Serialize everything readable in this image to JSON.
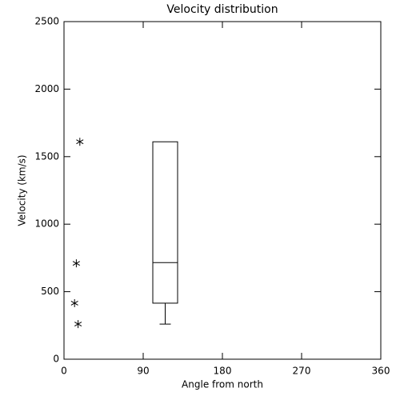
{
  "chart_data": [
    {
      "type": "scatter",
      "title": "Velocity distribution",
      "x_label": "Angle from north",
      "y_label": "Velocity (km/s)",
      "x": [
        18,
        14,
        12,
        16
      ],
      "values": [
        1610,
        710,
        415,
        260
      ],
      "xlim": [
        0,
        360
      ],
      "ylim": [
        0,
        2500
      ],
      "xticks": [
        0,
        90,
        180,
        270,
        360
      ],
      "yticks": [
        0,
        500,
        1000,
        1500,
        2000,
        2500
      ],
      "color": "#000000"
    },
    {
      "type": "box",
      "x": 115,
      "min": 260,
      "q1": 415,
      "median": 715,
      "q3": 1610,
      "max": 1610,
      "color": "#000000"
    }
  ]
}
